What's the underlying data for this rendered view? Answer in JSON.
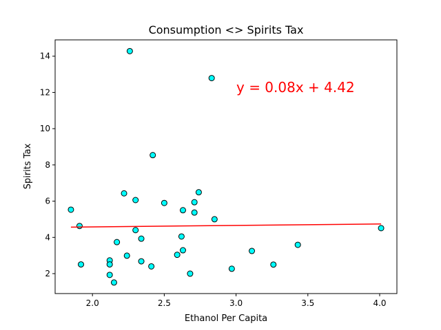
{
  "chart_data": {
    "type": "scatter",
    "title": "Consumption <> Spirits Tax",
    "xlabel": "Ethanol Per Capita",
    "ylabel": "Spirits Tax",
    "xlim": [
      1.74,
      4.12
    ],
    "ylim": [
      0.9,
      14.9
    ],
    "x_ticks": [
      2.0,
      2.5,
      3.0,
      3.5,
      4.0
    ],
    "x_tick_labels": [
      "2.0",
      "2.5",
      "3.0",
      "3.5",
      "4.0"
    ],
    "y_ticks": [
      2,
      4,
      6,
      8,
      10,
      12,
      14
    ],
    "y_tick_labels": [
      "2",
      "4",
      "6",
      "8",
      "10",
      "12",
      "14"
    ],
    "grid": false,
    "point_color": "#00ffff",
    "point_edge_color": "#000000",
    "regression_color": "#ff0000",
    "regression_equation": "y = 0.08x + 4.42",
    "regression": {
      "slope": 0.08,
      "intercept": 4.42,
      "x_range": [
        1.85,
        4.01
      ]
    },
    "points": [
      {
        "x": 1.85,
        "y": 5.53
      },
      {
        "x": 1.91,
        "y": 4.63
      },
      {
        "x": 1.92,
        "y": 2.51
      },
      {
        "x": 2.12,
        "y": 2.73
      },
      {
        "x": 2.12,
        "y": 2.51
      },
      {
        "x": 2.12,
        "y": 1.93
      },
      {
        "x": 2.15,
        "y": 1.51
      },
      {
        "x": 2.17,
        "y": 3.74
      },
      {
        "x": 2.22,
        "y": 6.43
      },
      {
        "x": 2.24,
        "y": 2.99
      },
      {
        "x": 2.26,
        "y": 14.28
      },
      {
        "x": 2.3,
        "y": 6.06
      },
      {
        "x": 2.3,
        "y": 4.4
      },
      {
        "x": 2.34,
        "y": 3.93
      },
      {
        "x": 2.34,
        "y": 2.68
      },
      {
        "x": 2.41,
        "y": 2.4
      },
      {
        "x": 2.42,
        "y": 8.54
      },
      {
        "x": 2.5,
        "y": 5.9
      },
      {
        "x": 2.59,
        "y": 3.04
      },
      {
        "x": 2.62,
        "y": 4.05
      },
      {
        "x": 2.63,
        "y": 5.5
      },
      {
        "x": 2.63,
        "y": 3.29
      },
      {
        "x": 2.68,
        "y": 2.0
      },
      {
        "x": 2.71,
        "y": 5.94
      },
      {
        "x": 2.71,
        "y": 5.37
      },
      {
        "x": 2.74,
        "y": 6.49
      },
      {
        "x": 2.83,
        "y": 12.79
      },
      {
        "x": 2.85,
        "y": 5.0
      },
      {
        "x": 2.97,
        "y": 2.27
      },
      {
        "x": 3.11,
        "y": 3.25
      },
      {
        "x": 3.26,
        "y": 2.5
      },
      {
        "x": 3.43,
        "y": 3.59
      },
      {
        "x": 4.01,
        "y": 4.51
      }
    ]
  }
}
